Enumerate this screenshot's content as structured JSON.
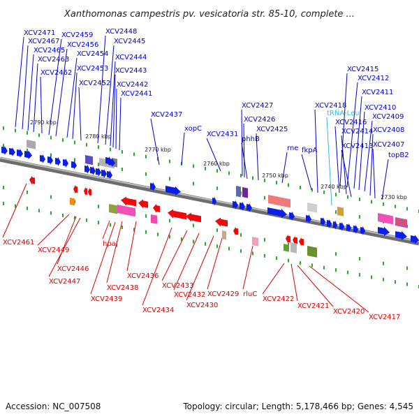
{
  "title": "Xanthomonas campestris pv. vesicatoria str. 85-10, complete ...",
  "footer": {
    "accession": "Accession: NC_007508",
    "summary": "Topology: circular; Length: 5,178,466 bp; Genes: 4,545"
  },
  "colors": {
    "plus_label": "#0000cc",
    "minus_label": "#dd0000",
    "rna_label": "#33bbdd",
    "backbone": "#888888",
    "tick": "#22aa22"
  },
  "kbp_markers": [
    "2790 kbp",
    "2780 kbp",
    "2770 kbp",
    "2760 kbp",
    "2750 kbp",
    "2740 kbp",
    "2730 kbp"
  ],
  "plus_labels": [
    "XCV2471",
    "XCV2467",
    "XCV2465",
    "XCV2463",
    "XCV2462",
    "XCV2459",
    "XCV2456",
    "XCV2454",
    "XCV2453",
    "XCV2452",
    "XCV2448",
    "XCV2445",
    "XCV2444",
    "XCV2443",
    "XCV2442",
    "XCV2441",
    "XCV2437",
    "xopC",
    "XCV2431",
    "XCV2427",
    "XCV2426",
    "phhB",
    "XCV2425",
    "rne",
    "fkpA",
    "XCV2418",
    "XCV2415",
    "XCV2412",
    "XCV2411",
    "XCV2410",
    "XCV2409",
    "XCV2416",
    "XCV2414",
    "XCV2408",
    "XCV2413",
    "XCV2407",
    "topB2"
  ],
  "rna_labels": [
    "tRNA-Leu"
  ],
  "minus_labels": [
    "XCV2461",
    "XCV2449",
    "XCV2446",
    "XCV2447",
    "hpaJ",
    "XCV2436",
    "XCV2438",
    "XCV2439",
    "XCV2434",
    "XCV2433",
    "XCV2432",
    "XCV2430",
    "XCV2429",
    "rluC",
    "XCV2422",
    "XCV2421",
    "XCV2420",
    "XCV2417"
  ]
}
